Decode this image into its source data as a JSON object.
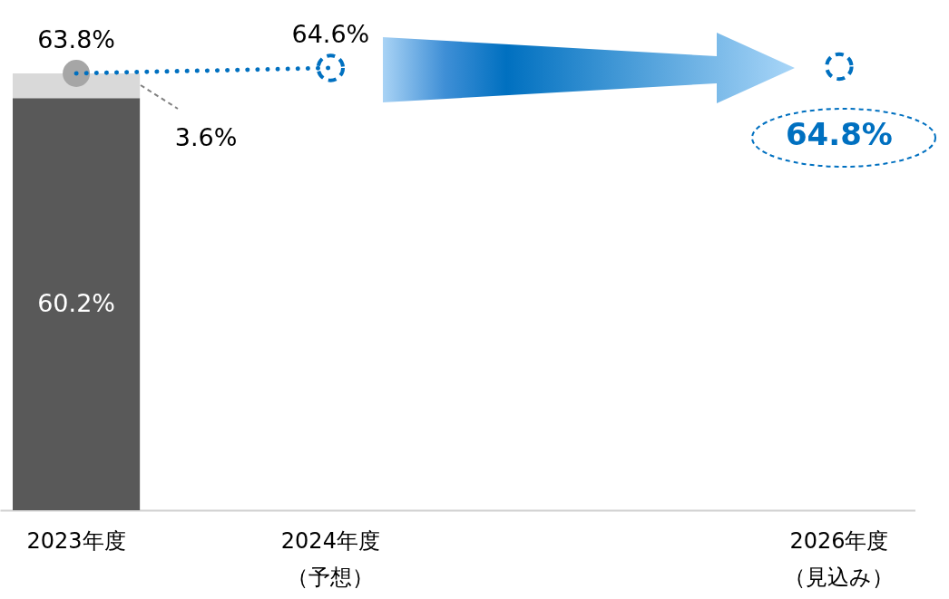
{
  "chart_data": {
    "type": "bar",
    "stacked": true,
    "categories": [
      "2023年度",
      "2024年度（予想）",
      null,
      "2026年度（見込み）"
    ],
    "series": [
      {
        "color": "#595959",
        "values": [
          60.2,
          null,
          null,
          null
        ],
        "value_labels": [
          "60.2%",
          null,
          null,
          null
        ]
      },
      {
        "color": "#d9d9d9",
        "values": [
          3.6,
          null,
          null,
          null
        ],
        "value_labels": [
          "3.6%",
          null,
          null,
          null
        ]
      },
      {
        "type": "scatter",
        "color": "#0070c0",
        "colors": [
          "#a6a6a6",
          "#0070c0",
          null,
          "#0070c0"
        ],
        "values": [
          63.8,
          64.6,
          null,
          64.8
        ],
        "value_labels": [
          "63.8%",
          "64.6%",
          null,
          "64.8%"
        ]
      },
      {
        "type": "line",
        "color": "#0070c0",
        "line_style": "dotted",
        "values": [
          63.8,
          64.6,
          null,
          null
        ]
      }
    ]
  }
}
